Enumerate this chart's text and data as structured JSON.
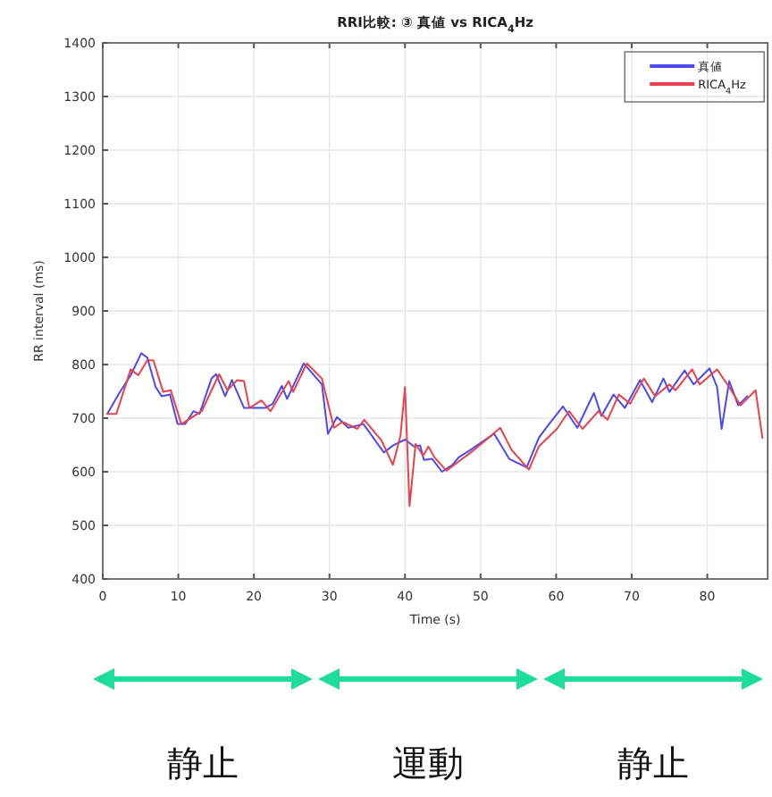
{
  "chart_data": {
    "type": "line",
    "title": "RRI比較: ③ 真値 vs RICA$_{4}$Hz",
    "xlabel": "Time (s)",
    "ylabel": "RR interval (ms)",
    "xlim": [
      0,
      88
    ],
    "ylim": [
      400,
      1400
    ],
    "xticks": [
      0,
      10,
      20,
      30,
      40,
      50,
      60,
      70,
      80
    ],
    "yticks": [
      400,
      500,
      600,
      700,
      800,
      900,
      1000,
      1100,
      1200,
      1300,
      1400
    ],
    "grid": true,
    "legend": "top right",
    "series": [
      {
        "name": "真値",
        "color": "#4a4af0",
        "x": [
          0.6,
          2.2,
          3.7,
          5.1,
          5.9,
          7.0,
          7.8,
          8.9,
          9.9,
          10.9,
          12.0,
          12.8,
          14.4,
          15.0,
          16.2,
          17.1,
          18.7,
          21.5,
          22.5,
          23.7,
          24.4,
          26.6,
          29.0,
          29.8,
          31.0,
          32.5,
          34.5,
          37.2,
          38.4,
          40.0,
          41.2,
          42.0,
          42.5,
          43.6,
          44.9,
          46.3,
          47.1,
          48.7,
          51.8,
          53.8,
          56.1,
          57.7,
          58.9,
          60.9,
          62.8,
          65.0,
          66.0,
          67.6,
          69.1,
          71.1,
          72.7,
          74.2,
          75.0,
          77.0,
          78.2,
          80.3,
          81.3,
          81.9,
          82.9,
          84.1,
          85.3
        ],
        "values": [
          708,
          747,
          780,
          821,
          813,
          758,
          741,
          744,
          689,
          689,
          713,
          708,
          774,
          782,
          741,
          771,
          719,
          719,
          727,
          760,
          736,
          802,
          763,
          671,
          702,
          682,
          689,
          636,
          649,
          660,
          647,
          649,
          622,
          624,
          600,
          613,
          627,
          641,
          671,
          624,
          608,
          663,
          686,
          722,
          682,
          747,
          704,
          744,
          719,
          771,
          730,
          774,
          749,
          789,
          763,
          793,
          758,
          680,
          769,
          724,
          741
        ]
      },
      {
        "name": "RICA$_{4}$Hz",
        "color": "#e8424c",
        "x": [
          0.6,
          1.8,
          3.7,
          4.7,
          5.9,
          6.7,
          8.0,
          9.0,
          10.4,
          13.1,
          15.4,
          16.5,
          17.8,
          18.7,
          19.4,
          21.0,
          22.2,
          24.6,
          25.2,
          27.0,
          29.0,
          30.6,
          31.7,
          33.7,
          34.6,
          36.9,
          38.4,
          39.4,
          40.0,
          40.6,
          41.4,
          42.4,
          43.1,
          43.9,
          45.5,
          48.7,
          50.6,
          52.6,
          54.1,
          56.4,
          57.7,
          60.1,
          61.7,
          63.5,
          65.6,
          66.8,
          68.3,
          69.8,
          71.6,
          73.1,
          75.0,
          75.8,
          78.0,
          79.0,
          81.3,
          82.9,
          84.4,
          86.4,
          87.3
        ],
        "values": [
          708,
          708,
          791,
          780,
          808,
          808,
          749,
          752,
          689,
          713,
          782,
          752,
          771,
          769,
          719,
          733,
          713,
          769,
          749,
          802,
          774,
          682,
          693,
          680,
          697,
          658,
          613,
          667,
          758,
          536,
          652,
          630,
          647,
          627,
          602,
          636,
          658,
          682,
          641,
          604,
          647,
          680,
          713,
          680,
          713,
          697,
          744,
          727,
          774,
          741,
          763,
          752,
          791,
          763,
          791,
          758,
          724,
          752,
          663
        ]
      }
    ],
    "annotations": [
      "静止",
      "運動",
      "静止"
    ]
  }
}
